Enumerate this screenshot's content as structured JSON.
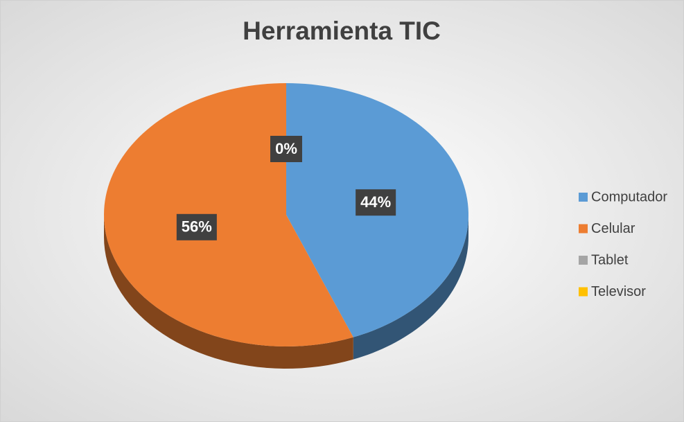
{
  "chart_data": {
    "type": "pie",
    "title": "Herramienta TIC",
    "categories": [
      "Computador",
      "Celular",
      "Tablet",
      "Televisor"
    ],
    "values": [
      44,
      56,
      0,
      0
    ],
    "value_labels": [
      "44%",
      "56%",
      "0%",
      "0%"
    ],
    "colors": [
      "#5b9bd5",
      "#ed7d31",
      "#a5a5a5",
      "#ffc000"
    ],
    "legend": "right"
  }
}
